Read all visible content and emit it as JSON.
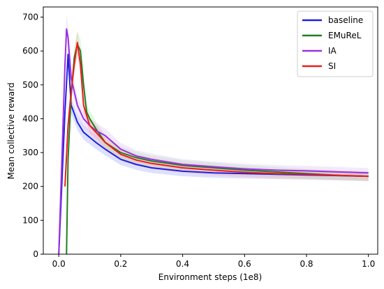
{
  "chart_data": {
    "type": "line",
    "title": "",
    "xlabel": "Environment steps (1e8)",
    "ylabel": "Mean collective reward",
    "xlim": [
      -0.05,
      1.03
    ],
    "ylim": [
      0,
      730
    ],
    "xticks": [
      0.0,
      0.2,
      0.4,
      0.6,
      0.8,
      1.0
    ],
    "xtick_labels": [
      "0.0",
      "0.2",
      "0.4",
      "0.6",
      "0.8",
      "1.0"
    ],
    "yticks": [
      0,
      100,
      200,
      300,
      400,
      500,
      600,
      700
    ],
    "ytick_labels": [
      "0",
      "100",
      "200",
      "300",
      "400",
      "500",
      "600",
      "700"
    ],
    "grid": false,
    "legend_position": "top-right",
    "series": [
      {
        "name": "baseline",
        "color": "#1f1fe0",
        "shade": "#9fa8ff",
        "x": [
          0.0,
          0.02,
          0.03,
          0.04,
          0.06,
          0.08,
          0.1,
          0.12,
          0.15,
          0.2,
          0.25,
          0.3,
          0.4,
          0.5,
          0.6,
          0.7,
          0.8,
          0.9,
          1.0
        ],
        "y": [
          0,
          420,
          590,
          440,
          390,
          360,
          345,
          330,
          310,
          280,
          265,
          255,
          245,
          240,
          238,
          236,
          234,
          232,
          230
        ]
      },
      {
        "name": "EMuReL",
        "color": "#1f7f1f",
        "shade": "#9ff09f",
        "x": [
          0.025,
          0.03,
          0.04,
          0.05,
          0.06,
          0.07,
          0.08,
          0.09,
          0.1,
          0.12,
          0.15,
          0.2,
          0.25,
          0.3,
          0.4,
          0.5,
          0.6,
          0.7,
          0.8,
          0.9,
          1.0
        ],
        "y": [
          0,
          280,
          470,
          580,
          620,
          600,
          500,
          420,
          400,
          370,
          330,
          300,
          285,
          275,
          262,
          255,
          248,
          243,
          238,
          233,
          230
        ]
      },
      {
        "name": "IA",
        "color": "#9a30e0",
        "shade": "#dcc0f5",
        "x": [
          0.0,
          0.02,
          0.025,
          0.03,
          0.04,
          0.06,
          0.08,
          0.1,
          0.12,
          0.15,
          0.2,
          0.25,
          0.3,
          0.4,
          0.5,
          0.6,
          0.7,
          0.8,
          0.9,
          1.0
        ],
        "y": [
          0,
          560,
          665,
          640,
          520,
          440,
          400,
          380,
          365,
          350,
          310,
          290,
          280,
          265,
          258,
          252,
          248,
          246,
          243,
          240
        ]
      },
      {
        "name": "SI",
        "color": "#ee1c1c",
        "shade": "#ffb0b0",
        "x": [
          0.02,
          0.03,
          0.04,
          0.05,
          0.06,
          0.07,
          0.08,
          0.1,
          0.12,
          0.15,
          0.2,
          0.25,
          0.3,
          0.4,
          0.5,
          0.6,
          0.7,
          0.8,
          0.9,
          1.0
        ],
        "y": [
          200,
          380,
          480,
          560,
          625,
          560,
          440,
          380,
          360,
          330,
          295,
          278,
          268,
          255,
          248,
          242,
          238,
          236,
          233,
          230
        ]
      }
    ]
  }
}
